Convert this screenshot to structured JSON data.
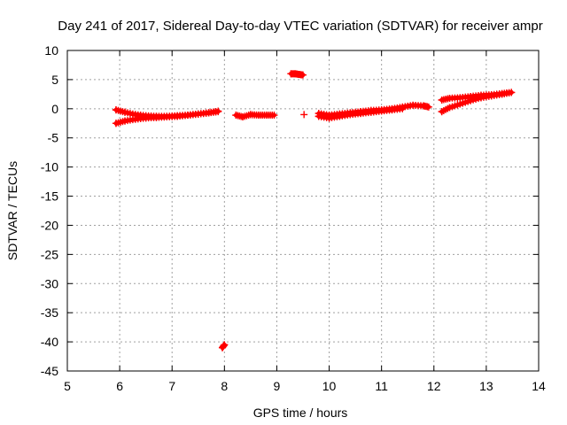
{
  "chart_data": {
    "type": "scatter",
    "title": "Day 241 of 2017, Sidereal Day-to-day VTEC variation (SDTVAR) for receiver ampr",
    "xlabel": "GPS time / hours",
    "ylabel": "SDTVAR / TECUs",
    "xlim": [
      5,
      14
    ],
    "ylim": [
      -45,
      10
    ],
    "xticks": [
      5,
      6,
      7,
      8,
      9,
      10,
      11,
      12,
      13,
      14
    ],
    "yticks": [
      10,
      5,
      0,
      -5,
      -10,
      -15,
      -20,
      -25,
      -30,
      -35,
      -40,
      -45
    ],
    "xtick_labels": [
      "5",
      "6",
      "7",
      "8",
      "9",
      "10",
      "11",
      "12",
      "13",
      "14"
    ],
    "ytick_labels": [
      "10",
      "5",
      "0",
      "-5",
      "-10",
      "-15",
      "-20",
      "-25",
      "-30",
      "-35",
      "-40",
      "-45"
    ],
    "grid": true,
    "marker": "plus",
    "color": "#ff0000",
    "series": [
      {
        "name": "SDTVAR",
        "segments": [
          {
            "x": [
              5.93,
              6.1,
              6.3,
              6.5,
              6.7,
              6.9,
              7.1,
              7.3,
              7.5,
              7.7,
              7.88
            ],
            "y": [
              -0.2,
              -0.6,
              -1.0,
              -1.2,
              -1.3,
              -1.3,
              -1.2,
              -1.1,
              -0.9,
              -0.7,
              -0.4
            ]
          },
          {
            "x": [
              5.93,
              6.1,
              6.3,
              6.5,
              6.7,
              6.9,
              7.1,
              7.3,
              7.5,
              7.7,
              7.88
            ],
            "y": [
              -2.5,
              -2.1,
              -1.8,
              -1.6,
              -1.5,
              -1.4,
              -1.3,
              -1.1,
              -0.9,
              -0.7,
              -0.5
            ]
          },
          {
            "x": [
              8.22,
              8.35,
              8.5,
              8.65,
              8.8,
              8.95
            ],
            "y": [
              -1.1,
              -1.4,
              -1.0,
              -1.1,
              -1.1,
              -1.1
            ]
          },
          {
            "x": [
              9.27,
              9.35,
              9.42,
              9.5
            ],
            "y": [
              6.0,
              6.0,
              5.9,
              5.8
            ]
          },
          {
            "x": [
              9.52
            ],
            "y": [
              -1.0
            ]
          },
          {
            "x": [
              9.8,
              10.0,
              10.2,
              10.4,
              10.6,
              10.8,
              11.0,
              11.2,
              11.4,
              11.6,
              11.8,
              11.9
            ],
            "y": [
              -0.8,
              -1.1,
              -0.9,
              -0.7,
              -0.5,
              -0.3,
              -0.2,
              0.0,
              0.3,
              0.6,
              0.5,
              0.3
            ]
          },
          {
            "x": [
              9.8,
              10.0,
              10.2,
              10.4,
              10.6,
              10.8,
              11.0,
              11.2,
              11.4
            ],
            "y": [
              -1.3,
              -1.6,
              -1.3,
              -1.0,
              -0.8,
              -0.6,
              -0.4,
              -0.2,
              0.0
            ]
          },
          {
            "x": [
              12.15,
              12.3,
              12.5,
              12.7,
              12.9,
              13.1,
              13.3,
              13.48
            ],
            "y": [
              1.5,
              1.8,
              1.9,
              2.1,
              2.3,
              2.4,
              2.6,
              2.8
            ]
          },
          {
            "x": [
              12.15,
              12.3,
              12.5,
              12.7,
              12.9,
              13.1,
              13.3,
              13.48
            ],
            "y": [
              -0.5,
              0.2,
              0.8,
              1.4,
              1.9,
              2.2,
              2.5,
              2.8
            ]
          },
          {
            "x": [
              7.96,
              8.0
            ],
            "y": [
              -41.0,
              -40.5
            ]
          }
        ]
      }
    ]
  }
}
